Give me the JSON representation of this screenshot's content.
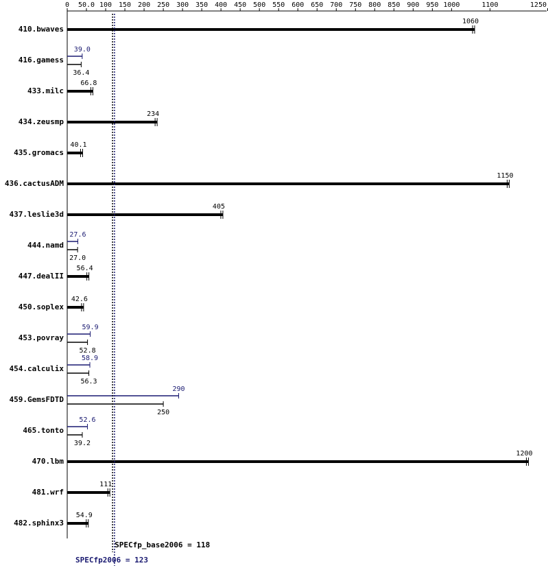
{
  "chart_data": {
    "type": "bar",
    "orientation": "horizontal",
    "categories": [
      "410.bwaves",
      "416.gamess",
      "433.milc",
      "434.zeusmp",
      "435.gromacs",
      "436.cactusADM",
      "437.leslie3d",
      "444.namd",
      "447.dealII",
      "450.soplex",
      "453.povray",
      "454.calculix",
      "459.GemsFDTD",
      "465.tonto",
      "470.lbm",
      "481.wrf",
      "482.sphinx3"
    ],
    "series": [
      {
        "color": "#000000",
        "values": [
          1060,
          36.4,
          66.8,
          234,
          40.1,
          1150,
          405,
          27.0,
          56.4,
          42.6,
          52.8,
          56.3,
          250,
          39.2,
          1200,
          111,
          54.9
        ],
        "value_labels": [
          "1060",
          "36.4",
          "66.8",
          "234",
          "40.1",
          "1150",
          "405",
          "27.0",
          "56.4",
          "42.6",
          "52.8",
          "56.3",
          "250",
          "39.2",
          "1200",
          "111",
          "54.9"
        ]
      },
      {
        "color": "#191970",
        "values": [
          null,
          39.0,
          null,
          null,
          null,
          null,
          null,
          27.6,
          null,
          null,
          59.9,
          58.9,
          290,
          52.6,
          null,
          null,
          null
        ],
        "value_labels": [
          null,
          "39.0",
          null,
          null,
          null,
          null,
          null,
          "27.6",
          null,
          null,
          "59.9",
          "58.9",
          "290",
          "52.6",
          null,
          null,
          null
        ]
      }
    ],
    "xlim": [
      0,
      1250
    ],
    "xticks": [
      0,
      {
        "value": 50,
        "label": "50.0"
      },
      100,
      150,
      200,
      250,
      300,
      350,
      400,
      450,
      500,
      550,
      600,
      650,
      700,
      750,
      800,
      850,
      900,
      950,
      1000,
      1100,
      1250
    ],
    "reference_lines": [
      {
        "value": 118,
        "label": "SPECfp_base2006 = 118",
        "color": "#000000"
      },
      {
        "value": 123,
        "label": "SPECfp2006 = 123",
        "color": "#191970"
      }
    ]
  }
}
